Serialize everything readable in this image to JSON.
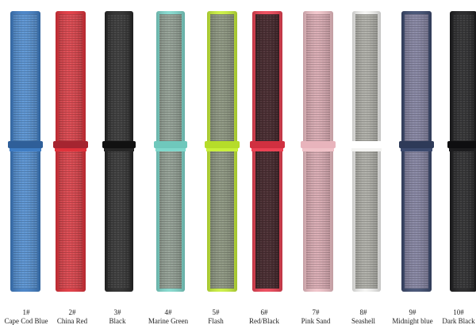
{
  "items": [
    {
      "number": "1#",
      "name": "Cape Cod Blue"
    },
    {
      "number": "2#",
      "name": "China Red"
    },
    {
      "number": "3#",
      "name": "Black"
    },
    {
      "number": "4#",
      "name": "Marine Green"
    },
    {
      "number": "5#",
      "name": "Flash"
    },
    {
      "number": "6#",
      "name": "Red/Black"
    },
    {
      "number": "7#",
      "name": "Pink Sand"
    },
    {
      "number": "8#",
      "name": "Seashell"
    },
    {
      "number": "9#",
      "name": "Midnight blue"
    },
    {
      "number": "10#",
      "name": "Dark Black"
    }
  ]
}
